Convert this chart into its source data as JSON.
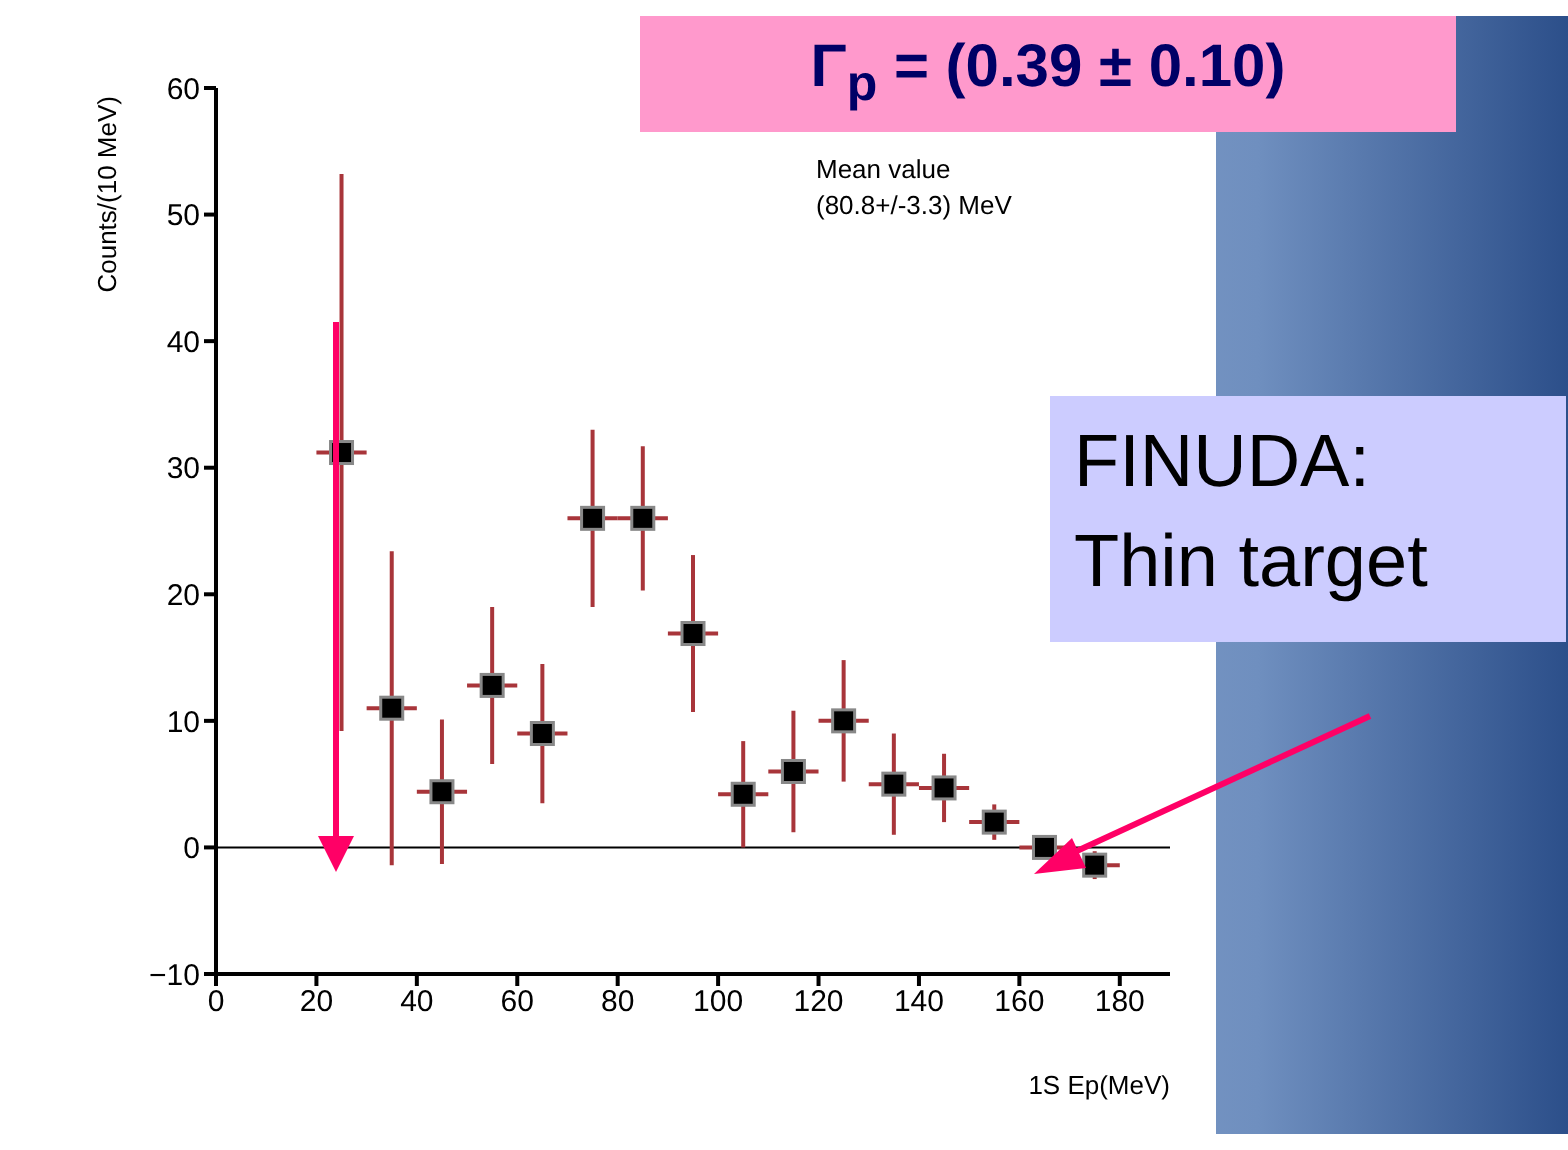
{
  "chart_data": {
    "type": "scatter",
    "title": "Γ$_{p}$ = (0.39 ± 0.10)",
    "xlabel": "1S Ep(MeV)",
    "ylabel": "Counts/(10 MeV)",
    "x": [
      25,
      35,
      45,
      55,
      65,
      75,
      85,
      95,
      105,
      115,
      125,
      135,
      145,
      155,
      165,
      175
    ],
    "series": [
      {
        "color": "#000000",
        "values": [
          31.2,
          11.0,
          4.4,
          12.8,
          9.0,
          26.0,
          26.0,
          16.9,
          4.2,
          6.0,
          10.0,
          5.0,
          4.7,
          2.0,
          0,
          -1.4
        ],
        "errors": [
          22,
          12.4,
          5.7,
          6.2,
          5.5,
          7,
          5.7,
          6.2,
          4.2,
          4.8,
          4.8,
          4,
          2.7,
          1.4,
          null,
          1.1
        ],
        "xerrors": [
          5,
          5,
          5,
          5,
          5,
          5,
          5,
          5,
          5,
          5,
          5,
          5,
          5,
          5,
          5,
          5
        ]
      }
    ],
    "xlim": [
      0,
      190
    ],
    "xticks": [
      0,
      20,
      40,
      60,
      80,
      100,
      120,
      140,
      160,
      180
    ],
    "ylim": [
      -10,
      60
    ],
    "yticks": [
      -10,
      0,
      10,
      20,
      30,
      40,
      50,
      60
    ],
    "ref_lines": [
      {
        "axis": "y",
        "value": 0,
        "color": "#000000"
      }
    ],
    "marker": "square",
    "grid": false,
    "legend": false,
    "annotations": [
      "Mean value\n(80.8+/-3.3) MeV",
      "FINUDA:\nThin target"
    ]
  }
}
